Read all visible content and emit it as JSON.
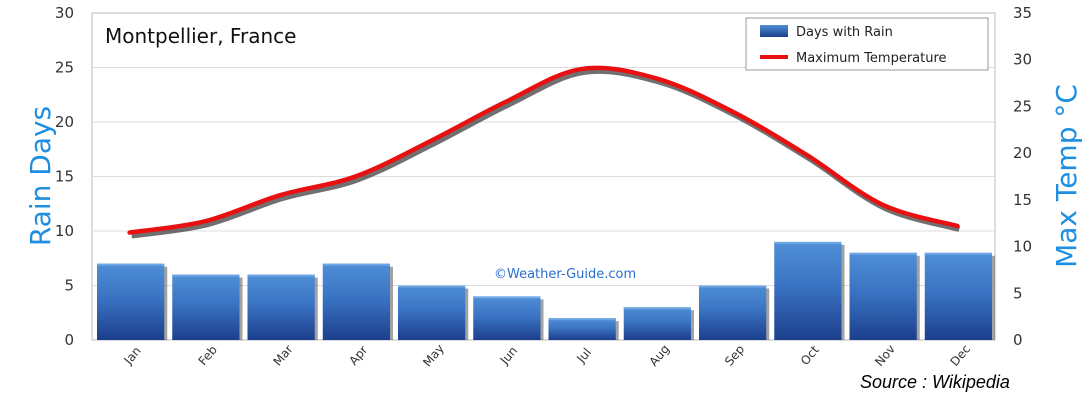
{
  "chart_data": {
    "type": "bar+line",
    "title": "Montpellier, France",
    "categories": [
      "Jan",
      "Feb",
      "Mar",
      "Apr",
      "May",
      "Jun",
      "Jul",
      "Aug",
      "Sep",
      "Oct",
      "Nov",
      "Dec"
    ],
    "series": [
      {
        "name": "Days with Rain",
        "type": "bar",
        "axis": "left",
        "color": "#2e64b8",
        "values": [
          7,
          6,
          6,
          7,
          5,
          4,
          2,
          3,
          5,
          9,
          8,
          8
        ]
      },
      {
        "name": "Maximum Temperature",
        "type": "line",
        "axis": "right",
        "color": "#e81010",
        "values": [
          11.5,
          12.7,
          15.5,
          17.5,
          21.3,
          25.5,
          29,
          28,
          24.5,
          19.8,
          14.5,
          12.2
        ]
      }
    ],
    "ylabel_left": "Rain Days",
    "ylabel_right": "Max Temp °C",
    "ylim_left": [
      0,
      30
    ],
    "ylim_right": [
      0,
      35
    ],
    "yticks_left": [
      0,
      5,
      10,
      15,
      20,
      25,
      30
    ],
    "yticks_right": [
      0,
      5,
      10,
      15,
      20,
      25,
      30,
      35
    ],
    "grid": true,
    "legend_position": "top-right",
    "watermark": "©Weather-Guide.com"
  },
  "source_note": "Source : Wikipedia"
}
